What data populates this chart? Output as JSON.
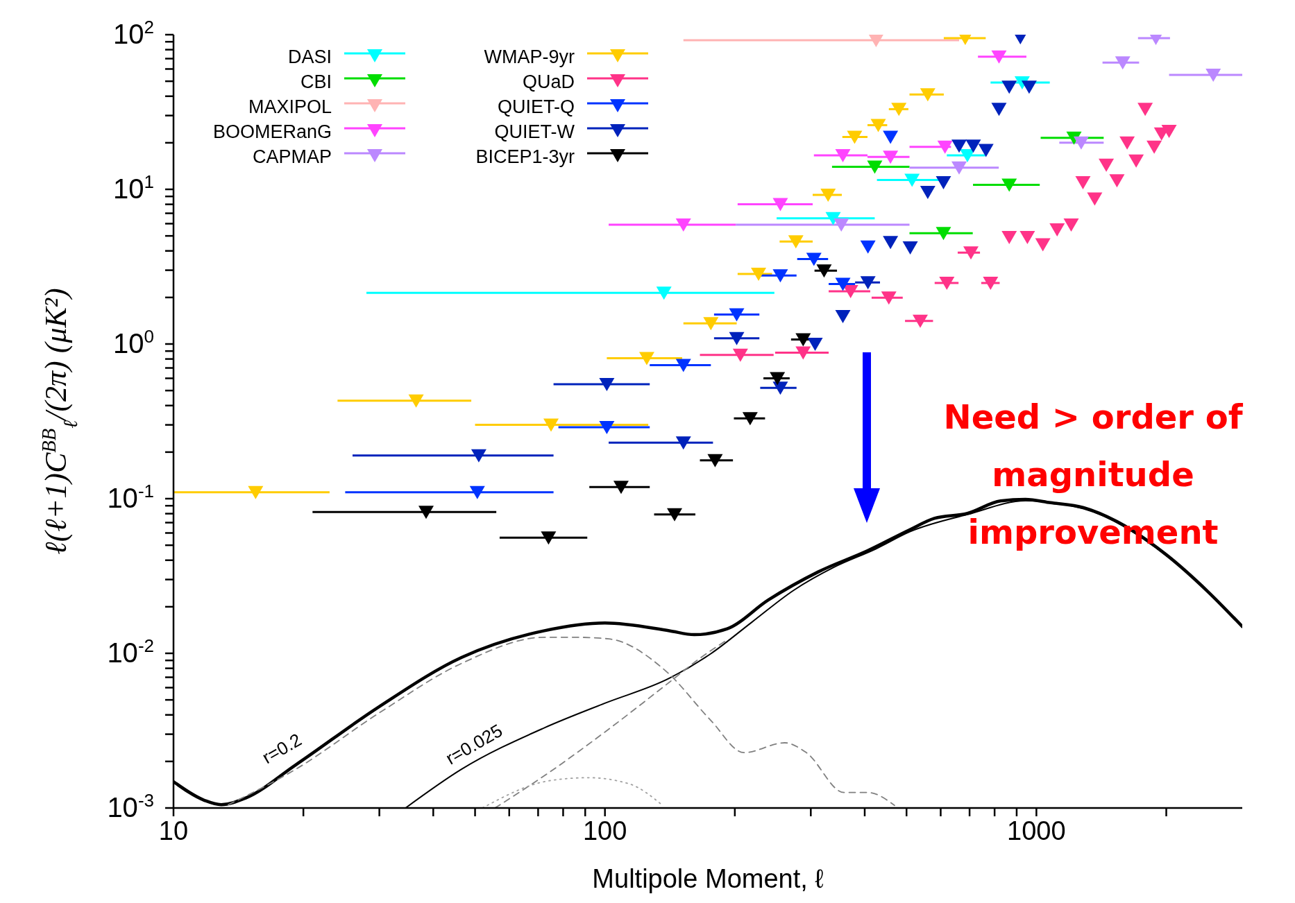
{
  "chart_data": {
    "type": "scatter",
    "xlabel": "Multipole Moment, ℓ",
    "ylabel": "ℓ(ℓ+1)C$^{BB}$$_{ℓ}$/(2π) (μK²)",
    "log": "xy",
    "legend": "top left",
    "marker": "triangle",
    "xlim": [
      10,
      3000
    ],
    "xticks": [
      10,
      {
        "value": 20,
        "label": null
      },
      {
        "value": 30,
        "label": null
      },
      {
        "value": 40,
        "label": null
      },
      {
        "value": 50,
        "label": null
      },
      {
        "value": 60,
        "label": null
      },
      {
        "value": 70,
        "label": null
      },
      {
        "value": 80,
        "label": null
      },
      {
        "value": 90,
        "label": null
      },
      100,
      {
        "value": 200,
        "label": null
      },
      {
        "value": 300,
        "label": null
      },
      {
        "value": 400,
        "label": null
      },
      {
        "value": 500,
        "label": null
      },
      {
        "value": 600,
        "label": null
      },
      {
        "value": 700,
        "label": null
      },
      {
        "value": 800,
        "label": null
      },
      {
        "value": 900,
        "label": null
      },
      1000,
      {
        "value": 2000,
        "label": null
      }
    ],
    "ylim": [
      0.001,
      100
    ],
    "yticks": [
      {
        "value": 0.001,
        "label": "10$^{-3}$"
      },
      {
        "value": 0.002,
        "label": null
      },
      {
        "value": 0.003,
        "label": null
      },
      {
        "value": 0.004,
        "label": null
      },
      {
        "value": 0.005,
        "label": null
      },
      {
        "value": 0.006,
        "label": null
      },
      {
        "value": 0.007,
        "label": null
      },
      {
        "value": 0.008,
        "label": null
      },
      {
        "value": 0.009,
        "label": null
      },
      {
        "value": 0.01,
        "label": "10$^{-2}$"
      },
      {
        "value": 0.02,
        "label": null
      },
      {
        "value": 0.03,
        "label": null
      },
      {
        "value": 0.04,
        "label": null
      },
      {
        "value": 0.05,
        "label": null
      },
      {
        "value": 0.06,
        "label": null
      },
      {
        "value": 0.07,
        "label": null
      },
      {
        "value": 0.08,
        "label": null
      },
      {
        "value": 0.09,
        "label": null
      },
      {
        "value": 0.1,
        "label": "10$^{-1}$"
      },
      {
        "value": 0.2,
        "label": null
      },
      {
        "value": 0.3,
        "label": null
      },
      {
        "value": 0.4,
        "label": null
      },
      {
        "value": 0.5,
        "label": null
      },
      {
        "value": 0.6,
        "label": null
      },
      {
        "value": 0.7,
        "label": null
      },
      {
        "value": 0.8,
        "label": null
      },
      {
        "value": 0.9,
        "label": null
      },
      {
        "value": 1,
        "label": "10$^{0}$"
      },
      {
        "value": 2,
        "label": null
      },
      {
        "value": 3,
        "label": null
      },
      {
        "value": 4,
        "label": null
      },
      {
        "value": 5,
        "label": null
      },
      {
        "value": 6,
        "label": null
      },
      {
        "value": 7,
        "label": null
      },
      {
        "value": 8,
        "label": null
      },
      {
        "value": 9,
        "label": null
      },
      {
        "value": 10,
        "label": "10$^{1}$"
      },
      {
        "value": 20,
        "label": null
      },
      {
        "value": 30,
        "label": null
      },
      {
        "value": 40,
        "label": null
      },
      {
        "value": 50,
        "label": null
      },
      {
        "value": 60,
        "label": null
      },
      {
        "value": 70,
        "label": null
      },
      {
        "value": 80,
        "label": null
      },
      {
        "value": 90,
        "label": null
      },
      {
        "value": 100,
        "label": "10$^{2}$"
      }
    ],
    "series": [
      {
        "name": "DASI",
        "color": "#00ffff",
        "x": [
          137,
          338,
          515,
          692,
          927
        ],
        "values": [
          2.14,
          6.5,
          11.5,
          16.6,
          49
        ],
        "xerrors": [
          [
            28,
            247
          ],
          [
            250,
            422
          ],
          [
            427,
            600
          ],
          [
            620,
            760
          ],
          [
            783,
            1074
          ]
        ]
      },
      {
        "name": "CBI",
        "color": "#00dd00",
        "x": [
          422,
          609,
          865,
          1222
        ],
        "values": [
          14,
          5.2,
          10.7,
          21.5
        ],
        "xerrors": [
          [
            336,
            508
          ],
          [
            508,
            712
          ],
          [
            713,
            1018
          ],
          [
            1023,
            1432
          ]
        ]
      },
      {
        "name": "MAXIPOL",
        "color": "#ffb3b3",
        "x": [
          425
        ],
        "values": [
          92
        ],
        "xerrors": [
          [
            152,
            662
          ]
        ]
      },
      {
        "name": "BOOMERanG",
        "color": "#ff44ff",
        "x": [
          152,
          255,
          356,
          459,
          614,
          819
        ],
        "values": [
          5.9,
          8.0,
          16.6,
          16.2,
          18.8,
          72
        ],
        "xerrors": [
          [
            102,
            201
          ],
          [
            203,
            303
          ],
          [
            305,
            406
          ],
          [
            406,
            508
          ],
          [
            508,
            634
          ],
          [
            732,
            948
          ]
        ]
      },
      {
        "name": "CAPMAP",
        "color": "#bb88ff",
        "x": [
          353,
          662,
          1270,
          1585,
          1892,
          2570
        ],
        "values": [
          5.9,
          13.8,
          20,
          66,
          95,
          55
        ],
        "xerrors": [
          [
            201,
            508
          ],
          [
            508,
            818
          ],
          [
            1130,
            1432
          ],
          [
            1423,
            1730
          ],
          [
            1720,
            2040
          ],
          [
            2030,
            3000
          ]
        ]
      },
      {
        "name": "WMAP-9yr",
        "color": "#ffcc00",
        "x": [
          15.5,
          36.5,
          75,
          125,
          176,
          227,
          277,
          329,
          379,
          430,
          480,
          560,
          684
        ],
        "values": [
          0.11,
          0.43,
          0.3,
          0.81,
          1.36,
          2.84,
          4.6,
          9.2,
          21.8,
          26,
          33,
          41,
          95
        ],
        "xerrors": [
          [
            10,
            23
          ],
          [
            24,
            49
          ],
          [
            50,
            126
          ],
          [
            101,
            151
          ],
          [
            152,
            202
          ],
          [
            203,
            244
          ],
          [
            254,
            303
          ],
          [
            303,
            354
          ],
          [
            355,
            406
          ],
          [
            406,
            451
          ],
          [
            455,
            505
          ],
          [
            508,
            610
          ],
          [
            610,
            763
          ]
        ]
      },
      {
        "name": "QUaD",
        "color": "#ff3388",
        "x": [
          206,
          288,
          371,
          455,
          538,
          620,
          705,
          783,
          865,
          953,
          1035,
          1117,
          1204,
          1282,
          1365,
          1452,
          1537,
          1623,
          1703,
          1787,
          1875,
          1950,
          2030
        ],
        "values": [
          0.85,
          0.88,
          2.19,
          1.99,
          1.41,
          2.48,
          3.9,
          2.48,
          4.9,
          4.9,
          4.4,
          5.5,
          5.9,
          11.1,
          8.7,
          14.4,
          11.4,
          20,
          15.3,
          33,
          18.8,
          22.9,
          23.8
        ],
        "xerrors": [
          [
            166,
            246
          ],
          [
            248,
            330
          ],
          [
            330,
            412
          ],
          [
            415,
            490
          ],
          [
            496,
            576
          ],
          [
            581,
            660
          ],
          [
            657,
            740
          ],
          [
            745,
            822
          ],
          null,
          null,
          null,
          null,
          null,
          null,
          null,
          null,
          null,
          null,
          null,
          null,
          null,
          null,
          null
        ]
      },
      {
        "name": "QUIET-Q",
        "color": "#0033ff",
        "x": [
          50.6,
          101,
          152,
          202,
          255,
          305,
          356,
          407,
          459
        ],
        "values": [
          0.11,
          0.29,
          0.73,
          1.55,
          2.77,
          3.54,
          2.44,
          4.26,
          21.8
        ],
        "xerrors": [
          [
            25,
            76
          ],
          [
            78,
            127
          ],
          [
            127,
            176
          ],
          [
            179,
            228
          ],
          [
            229,
            278
          ],
          [
            279,
            329
          ],
          [
            330,
            380
          ],
          null,
          null
        ]
      },
      {
        "name": "QUIET-W",
        "color": "#0022bb",
        "x": [
          51,
          101,
          152,
          202,
          255,
          307,
          356,
          407,
          459,
          510,
          560,
          609,
          662,
          714,
          764,
          819,
          865,
          918,
          962
        ],
        "values": [
          0.19,
          0.55,
          0.23,
          1.09,
          0.52,
          1.0,
          1.51,
          2.5,
          4.55,
          4.2,
          9.6,
          11.1,
          19.1,
          19.1,
          17.9,
          33,
          46,
          96,
          46
        ],
        "xerrors": [
          [
            26,
            76
          ],
          [
            76,
            127
          ],
          [
            102,
            178
          ],
          [
            179,
            228
          ],
          [
            229,
            278
          ],
          null,
          null,
          [
            380,
            434
          ],
          null,
          null,
          null,
          null,
          null,
          null,
          null,
          null,
          null,
          null,
          null
        ]
      },
      {
        "name": "BICEP1-3yr",
        "color": "#000000",
        "x": [
          38.5,
          74,
          109,
          145,
          180,
          217,
          251,
          288,
          322
        ],
        "values": [
          0.082,
          0.056,
          0.119,
          0.079,
          0.177,
          0.33,
          0.6,
          1.07,
          2.98
        ],
        "xerrors": [
          [
            21,
            56
          ],
          [
            57,
            91
          ],
          [
            92,
            127
          ],
          [
            130,
            162
          ],
          [
            166,
            198
          ],
          [
            199,
            235
          ],
          [
            233,
            268
          ],
          [
            270,
            306
          ],
          [
            306,
            345
          ]
        ]
      },
      {
        "type": "line",
        "color": "#000000",
        "line_style": "solid",
        "marker": "none",
        "x": [
          10,
          11.8,
          12.9,
          14.7,
          19.2,
          29.9,
          46.5,
          72.4,
          100,
          141,
          161,
          192,
          239,
          312,
          407,
          508,
          580,
          692,
          826,
          943,
          1078,
          1286,
          1538,
          1998,
          2500,
          3000
        ],
        "values": [
          0.00148,
          0.00112,
          0.00105,
          0.00116,
          0.0019,
          0.0045,
          0.0094,
          0.014,
          0.0157,
          0.014,
          0.0132,
          0.0144,
          0.0221,
          0.0336,
          0.0462,
          0.0628,
          0.0746,
          0.0803,
          0.0966,
          0.099,
          0.0942,
          0.0875,
          0.0711,
          0.0435,
          0.025,
          0.0149
        ]
      },
      {
        "type": "line",
        "color": "#000000",
        "line_style": "solid",
        "marker": "none",
        "x": [
          34.5,
          46.5,
          72.4,
          100,
          141,
          176,
          219,
          274,
          340,
          425,
          508,
          692,
          943,
          1286,
          1998,
          3000
        ],
        "values": [
          0.001,
          0.00178,
          0.0033,
          0.00476,
          0.0069,
          0.00995,
          0.0159,
          0.0256,
          0.0361,
          0.0474,
          0.061,
          0.079,
          0.097,
          0.086,
          0.043,
          0.0148
        ]
      },
      {
        "type": "line",
        "color": "#808080",
        "line_style": "dashed",
        "marker": "none",
        "x": [
          55.6,
          74.3,
          100,
          141,
          167,
          190
        ],
        "values": [
          0.001,
          0.0017,
          0.0031,
          0.0065,
          0.0094,
          0.012
        ]
      },
      {
        "type": "line",
        "color": "#808080",
        "line_style": "dashed",
        "marker": "none",
        "x": [
          13.4,
          19.2,
          29.9,
          46.5,
          72.4,
          85.3,
          102,
          139,
          176,
          210,
          261,
          293,
          358,
          407,
          469
        ],
        "values": [
          0.00105,
          0.00178,
          0.0041,
          0.0086,
          0.0127,
          0.0127,
          0.0124,
          0.0076,
          0.00368,
          0.00228,
          0.00264,
          0.00228,
          0.00126,
          0.00126,
          0.00104
        ]
      },
      {
        "type": "line",
        "color": "#a0a0a0",
        "line_style": "dotted",
        "marker": "none",
        "x": [
          52,
          74.3,
          91.8,
          114,
          136
        ],
        "values": [
          0.001,
          0.0015,
          0.00157,
          0.00143,
          0.00104
        ]
      }
    ],
    "annotations": [
      "Need > order of magnitude improvement",
      "r=0.2",
      "r=0.025"
    ]
  }
}
